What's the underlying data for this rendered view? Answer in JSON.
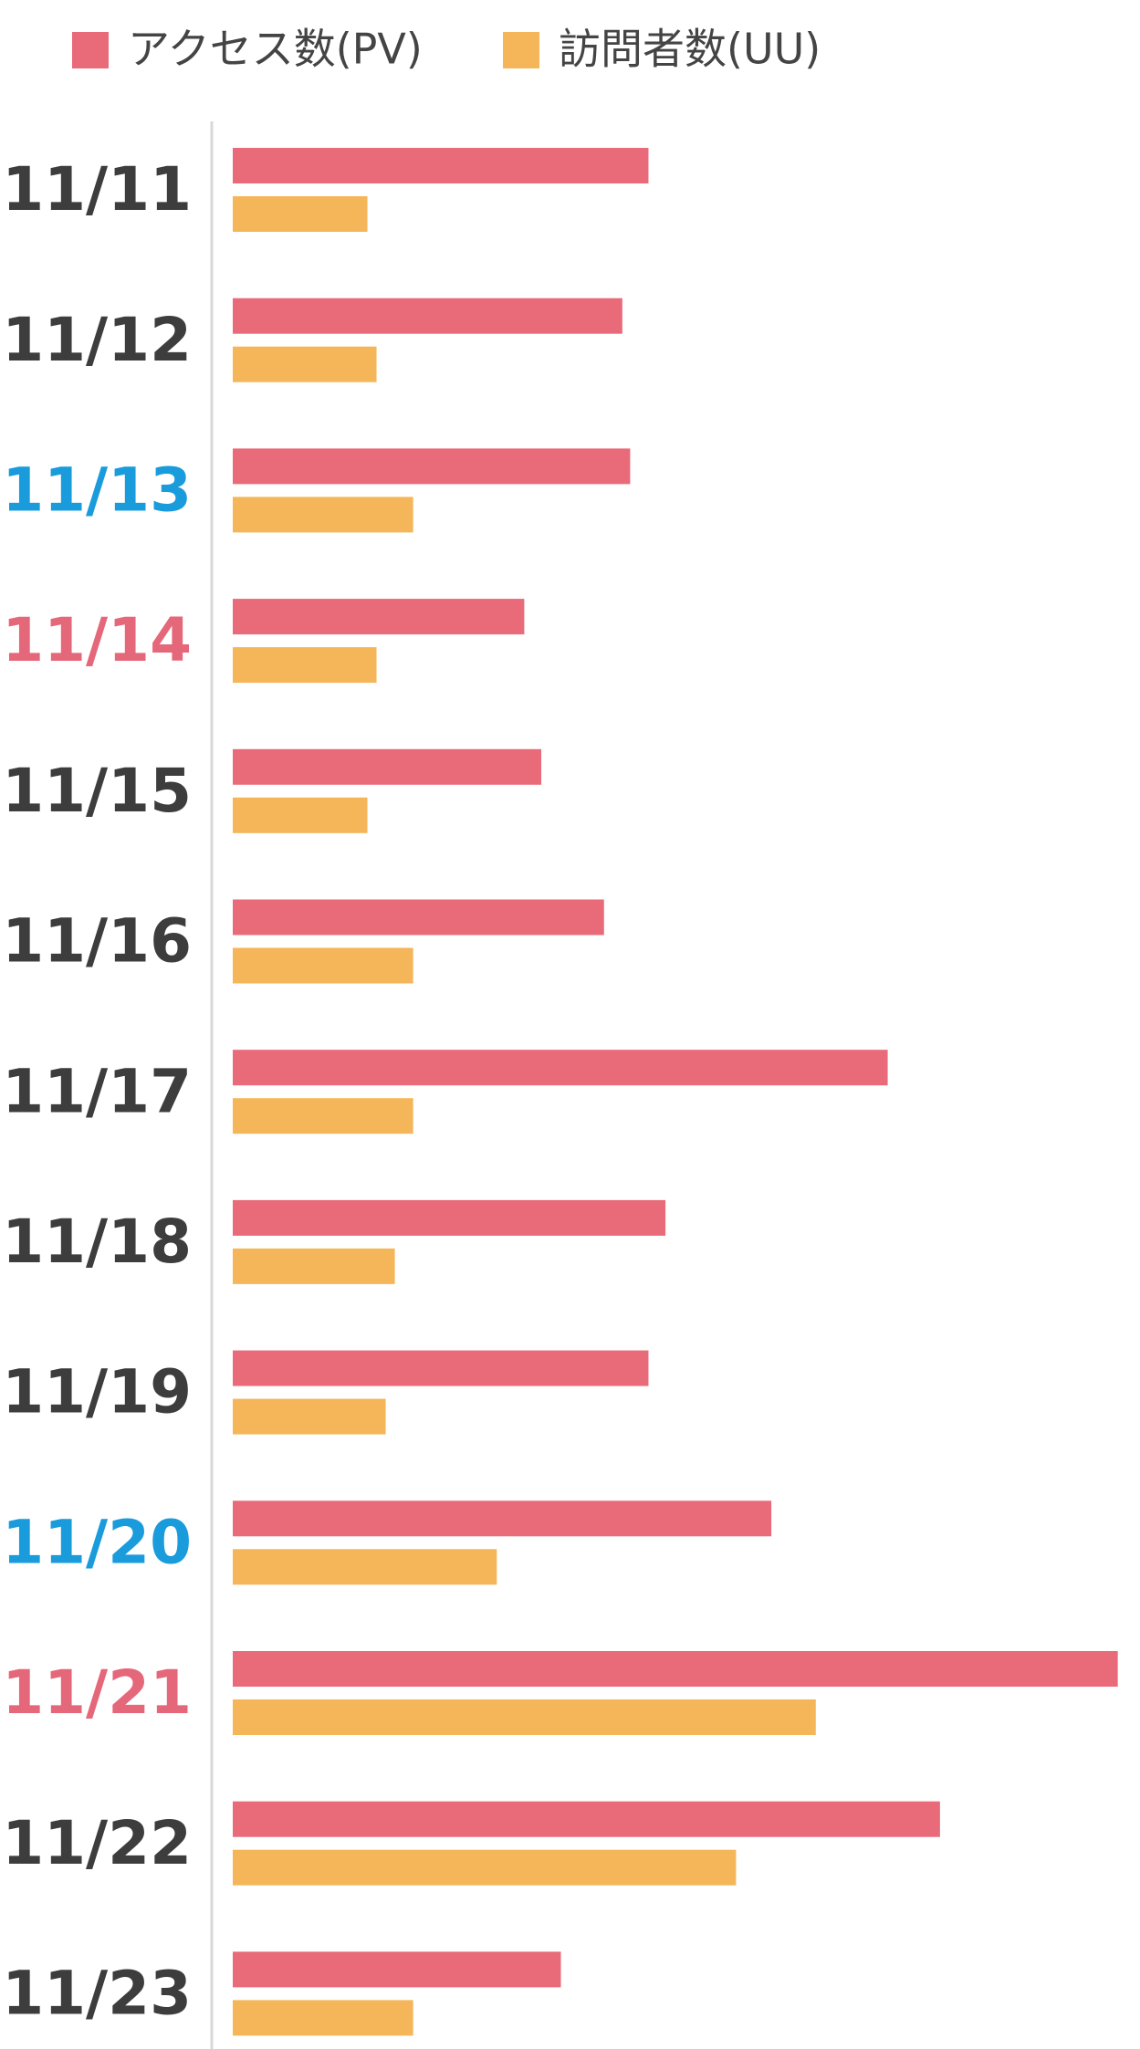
{
  "chart_data": {
    "type": "hbar",
    "categories": [
      "11/11",
      "11/12",
      "11/13",
      "11/14",
      "11/15",
      "11/16",
      "11/17",
      "11/18",
      "11/19",
      "11/20",
      "11/21",
      "11/22",
      "11/23"
    ],
    "category_colors": [
      "#3d3d3d",
      "#3d3d3d",
      "#1a9bdc",
      "#e5677a",
      "#3d3d3d",
      "#3d3d3d",
      "#3d3d3d",
      "#3d3d3d",
      "#3d3d3d",
      "#1a9bdc",
      "#e5677a",
      "#3d3d3d",
      "#3d3d3d"
    ],
    "series": [
      {
        "name": "アクセス数(PV)",
        "color": "#e96a79",
        "values": [
          318,
          298,
          304,
          223,
          236,
          284,
          501,
          331,
          318,
          412,
          677,
          541,
          251
        ]
      },
      {
        "name": "訪問者数(UU)",
        "color": "#f5b65a",
        "values": [
          103,
          110,
          138,
          110,
          103,
          138,
          138,
          124,
          117,
          202,
          446,
          385,
          138
        ]
      }
    ],
    "xlim": [
      0,
      694
    ]
  }
}
